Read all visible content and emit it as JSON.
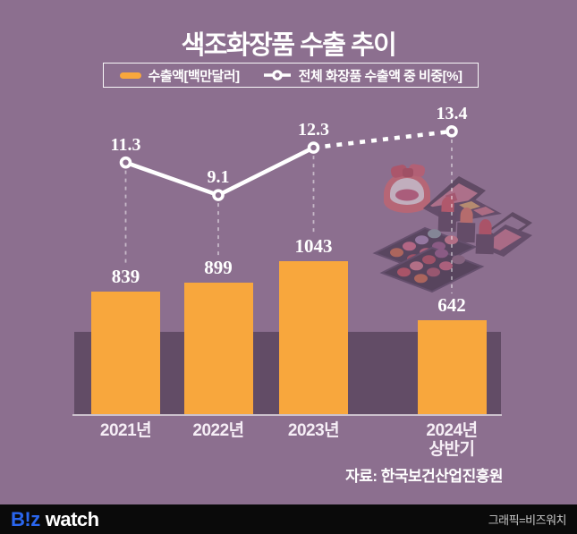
{
  "title": "색조화장품 수출 추이",
  "legend": {
    "bar_label": "수출액[백만달러]",
    "line_label": "전체 화장품 수출액 중 비중[%]"
  },
  "chart_data": {
    "type": "bar+line",
    "categories": [
      "2021년",
      "2022년",
      "2023년",
      "2024년 상반기"
    ],
    "category_lines": [
      [
        "2021년"
      ],
      [
        "2022년"
      ],
      [
        "2023년"
      ],
      [
        "2024년",
        "상반기"
      ]
    ],
    "series": [
      {
        "name": "수출액[백만달러]",
        "type": "bar",
        "unit": "백만달러",
        "values": [
          839,
          899,
          1043,
          642
        ],
        "color": "#f8a73d"
      },
      {
        "name": "전체 화장품 수출액 중 비중[%]",
        "type": "line",
        "unit": "%",
        "values": [
          11.3,
          9.1,
          12.3,
          13.4
        ],
        "color": "#ffffff",
        "note": "segment from 2023 to 2024 상반기 is dashed"
      }
    ],
    "value_labels_shown": true,
    "axes_hidden": true,
    "legend_position": "top"
  },
  "source": "자료: 한국보건산업진흥원",
  "footer": {
    "logo_highlight": "B!z",
    "logo_rest": "watch",
    "credit": "그래픽=비즈워치"
  },
  "colors": {
    "background": "#8c6f8f",
    "band": "#624c66",
    "bar": "#f8a73d",
    "line": "#ffffff",
    "baseline": "#ccc2cd",
    "footer_bg": "#0a0a0a",
    "logo_blue": "#2a66ee"
  }
}
